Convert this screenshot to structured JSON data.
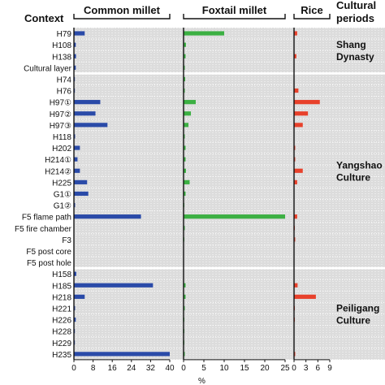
{
  "chart_data": {
    "type": "bar",
    "orientation": "horizontal",
    "row_header": "Context",
    "period_header": [
      "Cultural",
      "periods"
    ],
    "xlabel": "%",
    "grid": true,
    "background_color": "#dcdcdc",
    "grid_color": "#ffffff",
    "categories": [
      "H79",
      "H108",
      "H138",
      "Cultural layer",
      "H74",
      "H76",
      "H97①",
      "H97②",
      "H97③",
      "H118",
      "H202",
      "H214①",
      "H214②",
      "H225",
      "G1①",
      "G1②",
      "F5 flame path",
      "F5 fire chamber",
      "F3",
      "F5 post core",
      "F5 post hole",
      "H158",
      "H185",
      "H218",
      "H221",
      "H226",
      "H228",
      "H229",
      "H235"
    ],
    "periods": [
      {
        "name": [
          "Shang",
          "Dynasty"
        ],
        "rows": [
          0,
          3
        ]
      },
      {
        "name": [
          "Yangshao",
          "Culture"
        ],
        "rows": [
          4,
          20
        ]
      },
      {
        "name": [
          "Peiligang",
          "Culture"
        ],
        "rows": [
          21,
          28
        ]
      }
    ],
    "series": [
      {
        "name": "Common millet",
        "color": "#2a4aa8",
        "xlim": [
          0,
          40
        ],
        "ticks": [
          "0",
          "8",
          "16",
          "24",
          "32",
          "40"
        ],
        "values": [
          4.5,
          0.8,
          0.9,
          0.8,
          0.4,
          0.4,
          11,
          9,
          14,
          0.5,
          2.5,
          1.5,
          2.5,
          5.5,
          6,
          0.5,
          28,
          0,
          0,
          0,
          0,
          1,
          33,
          4.5,
          0.5,
          0.8,
          0.4,
          0.4,
          40
        ]
      },
      {
        "name": "Foxtail millet",
        "color": "#3cb043",
        "xlim": [
          0,
          25
        ],
        "ticks": [
          "0",
          "5",
          "10",
          "15",
          "20",
          "25"
        ],
        "values": [
          10,
          0.6,
          0.5,
          0.3,
          0.4,
          0.3,
          3,
          1.8,
          1.2,
          0.3,
          0.5,
          0.5,
          0.6,
          1.5,
          0.5,
          0.2,
          25,
          0.3,
          0.2,
          0.1,
          0.1,
          0.1,
          0.5,
          0.5,
          0.3,
          0.2,
          0.2,
          0.2,
          0.3
        ]
      },
      {
        "name": "Rice",
        "color": "#e8412b",
        "xlim": [
          0,
          9
        ],
        "ticks": [
          "0",
          "3",
          "6",
          "9"
        ],
        "values": [
          0.8,
          0.1,
          0.6,
          0.1,
          0.1,
          1.1,
          6.5,
          3.5,
          2.2,
          0.1,
          0.3,
          0.3,
          2.2,
          0.8,
          0.1,
          0.1,
          0.8,
          0.2,
          0.3,
          0.1,
          0.1,
          0.1,
          0.9,
          5.5,
          0.2,
          0.2,
          0.1,
          0.1,
          0.3
        ]
      }
    ]
  }
}
